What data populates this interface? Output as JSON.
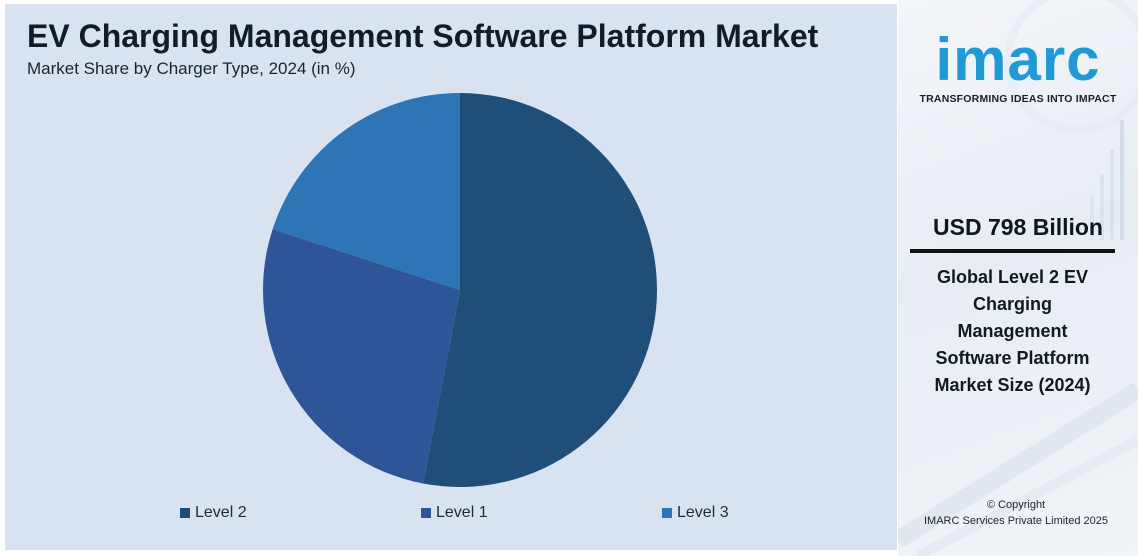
{
  "header": {
    "title": "EV Charging Management Software Platform Market",
    "subtitle": "Market Share by Charger Type, 2024 (in %)"
  },
  "chart_data": {
    "type": "pie",
    "title": "EV Charging Management Software Platform Market",
    "subtitle": "Market Share by Charger Type, 2024 (in %)",
    "categories": [
      "Level 2",
      "Level 1",
      "Level 3"
    ],
    "values": [
      53,
      27,
      20
    ],
    "colors": [
      "#1f4e79",
      "#2e5597",
      "#2e75b6"
    ],
    "start_angle_deg": 0,
    "direction": "clockwise",
    "legend_position": "bottom"
  },
  "legend": {
    "items": [
      {
        "label": "Level 2",
        "color": "#1f4e79"
      },
      {
        "label": "Level 1",
        "color": "#2e5597"
      },
      {
        "label": "Level 3",
        "color": "#2e75b6"
      }
    ]
  },
  "sidebar": {
    "logo_text": "imarc",
    "tagline": "TRANSFORMING IDEAS INTO IMPACT",
    "stat_value": "USD 798 Billion",
    "stat_description": "Global Level 2 EV Charging Management Software Platform Market Size (2024)",
    "copyright_line1": "© Copyright",
    "copyright_line2": "IMARC Services Private Limited 2025",
    "brand_color": "#1f9ad6"
  }
}
